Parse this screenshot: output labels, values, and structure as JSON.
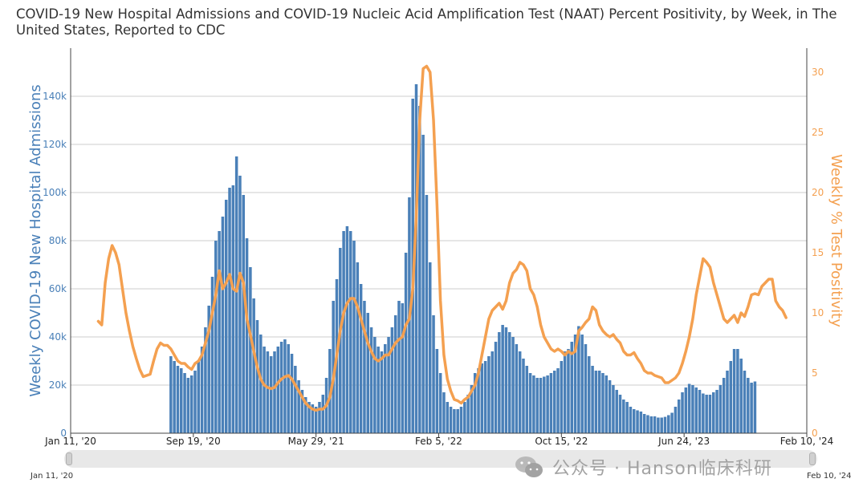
{
  "title": "COVID-19 New Hospital Admissions and COVID-19 Nucleic Acid Amplification Test (NAAT) Percent Positivity, by Week, in The United States, Reported to CDC",
  "watermark": {
    "icon": "wechat-icon",
    "text": "公众号 · Hanson临床科研"
  },
  "slider": {
    "start_label": "Jan 11, '20",
    "end_label": "Feb 10, '24"
  },
  "colors": {
    "bars": "#4a80b8",
    "line": "#f4a050",
    "left_axis": "#4a80b8",
    "right_axis": "#f4a050",
    "grid": "#cccccc"
  },
  "chart_data": {
    "type": "bar",
    "x_axis": {
      "start": "2020-01-11",
      "end": "2024-02-10",
      "tick_labels": [
        "Jan 11, '20",
        "Sep 19, '20",
        "May 29, '21",
        "Feb 5, '22",
        "Oct 15, '22",
        "Jun 24, '23",
        "Feb 10, '24"
      ]
    },
    "y_left": {
      "label": "Weekly COVID-19 New Hospital Admissions",
      "range": [
        0,
        160000
      ],
      "tick_labels": [
        "0",
        "20k",
        "40k",
        "60k",
        "80k",
        "100k",
        "120k",
        "140k"
      ]
    },
    "y_right": {
      "label": "Weekly % Test Positivity",
      "range": [
        0,
        32
      ],
      "tick_labels": [
        "0",
        "5",
        "10",
        "15",
        "20",
        "25",
        "30"
      ]
    },
    "grid": true,
    "series": [
      {
        "kind": "bar",
        "axis": "left",
        "start_week": "2020-08-01",
        "values": [
          32000,
          30000,
          28000,
          27000,
          25000,
          23000,
          24000,
          26000,
          30000,
          36000,
          44000,
          53000,
          65000,
          80000,
          84000,
          90000,
          97000,
          102000,
          103000,
          115000,
          107000,
          99000,
          81000,
          69000,
          56000,
          47000,
          41000,
          36000,
          34000,
          32000,
          34000,
          36000,
          38000,
          39000,
          37000,
          33000,
          28000,
          22000,
          18000,
          15000,
          13000,
          12000,
          11000,
          13000,
          16000,
          23000,
          35000,
          55000,
          64000,
          77000,
          84000,
          86000,
          84000,
          80000,
          71000,
          62000,
          55000,
          50000,
          44000,
          40000,
          36000,
          34000,
          37000,
          40000,
          44000,
          49000,
          55000,
          54000,
          75000,
          98000,
          139000,
          145000,
          136000,
          124000,
          99000,
          71000,
          49000,
          35000,
          25000,
          17000,
          13000,
          11000,
          10000,
          10000,
          11000,
          13000,
          16000,
          20000,
          25000,
          27000,
          29000,
          30000,
          32000,
          34000,
          38000,
          42000,
          45000,
          44000,
          42000,
          40000,
          37000,
          34000,
          31000,
          28000,
          25000,
          24000,
          23000,
          23000,
          23500,
          24000,
          25000,
          26000,
          27000,
          30000,
          34000,
          35000,
          38000,
          41000,
          44500,
          41000,
          37000,
          32000,
          28000,
          26000,
          26000,
          25000,
          24000,
          22000,
          20000,
          18000,
          16000,
          14000,
          13000,
          11000,
          10000,
          9500,
          9000,
          8000,
          7500,
          7000,
          7000,
          6500,
          6500,
          6800,
          7500,
          8500,
          11000,
          14000,
          17000,
          19000,
          20500,
          20000,
          19000,
          18000,
          16500,
          16000,
          16000,
          17000,
          18000,
          20000,
          23000,
          26000,
          30000,
          35000,
          35000,
          31000,
          26000,
          23000,
          21000,
          21500
        ]
      },
      {
        "kind": "line",
        "axis": "right",
        "points": [
          [
            "2020-03-07",
            9.3
          ],
          [
            "2020-03-14",
            9.0
          ],
          [
            "2020-03-21",
            12.5
          ],
          [
            "2020-03-28",
            14.5
          ],
          [
            "2020-04-04",
            15.6
          ],
          [
            "2020-04-11",
            15.0
          ],
          [
            "2020-04-18",
            14.0
          ],
          [
            "2020-04-25",
            12.0
          ],
          [
            "2020-05-02",
            10.0
          ],
          [
            "2020-05-09",
            8.5
          ],
          [
            "2020-05-16",
            7.2
          ],
          [
            "2020-05-23",
            6.2
          ],
          [
            "2020-05-30",
            5.3
          ],
          [
            "2020-06-06",
            4.7
          ],
          [
            "2020-06-13",
            4.8
          ],
          [
            "2020-06-20",
            4.9
          ],
          [
            "2020-06-27",
            6.0
          ],
          [
            "2020-07-04",
            7.0
          ],
          [
            "2020-07-11",
            7.5
          ],
          [
            "2020-07-18",
            7.3
          ],
          [
            "2020-07-25",
            7.3
          ],
          [
            "2020-08-01",
            7.0
          ],
          [
            "2020-08-08",
            6.5
          ],
          [
            "2020-08-15",
            6.0
          ],
          [
            "2020-08-22",
            5.8
          ],
          [
            "2020-08-29",
            5.8
          ],
          [
            "2020-09-05",
            5.5
          ],
          [
            "2020-09-12",
            5.3
          ],
          [
            "2020-09-19",
            5.8
          ],
          [
            "2020-09-26",
            6.0
          ],
          [
            "2020-10-03",
            6.5
          ],
          [
            "2020-10-10",
            7.5
          ],
          [
            "2020-10-17",
            8.5
          ],
          [
            "2020-10-24",
            10.0
          ],
          [
            "2020-10-31",
            11.5
          ],
          [
            "2020-11-07",
            13.5
          ],
          [
            "2020-11-14",
            12.0
          ],
          [
            "2020-11-21",
            12.5
          ],
          [
            "2020-11-28",
            13.2
          ],
          [
            "2020-12-05",
            12.0
          ],
          [
            "2020-12-12",
            11.8
          ],
          [
            "2020-12-19",
            13.3
          ],
          [
            "2020-12-26",
            12.5
          ],
          [
            "2021-01-02",
            9.5
          ],
          [
            "2021-01-09",
            8.2
          ],
          [
            "2021-01-16",
            6.8
          ],
          [
            "2021-01-23",
            5.5
          ],
          [
            "2021-01-30",
            4.5
          ],
          [
            "2021-02-06",
            4.0
          ],
          [
            "2021-02-13",
            3.8
          ],
          [
            "2021-02-20",
            3.7
          ],
          [
            "2021-02-27",
            3.8
          ],
          [
            "2021-03-06",
            4.2
          ],
          [
            "2021-03-13",
            4.5
          ],
          [
            "2021-03-20",
            4.7
          ],
          [
            "2021-03-27",
            4.8
          ],
          [
            "2021-04-03",
            4.5
          ],
          [
            "2021-04-10",
            4.0
          ],
          [
            "2021-04-17",
            3.5
          ],
          [
            "2021-04-24",
            3.0
          ],
          [
            "2021-05-01",
            2.5
          ],
          [
            "2021-05-08",
            2.2
          ],
          [
            "2021-05-15",
            2.0
          ],
          [
            "2021-05-22",
            1.9
          ],
          [
            "2021-05-29",
            2.0
          ],
          [
            "2021-06-05",
            2.0
          ],
          [
            "2021-06-12",
            2.3
          ],
          [
            "2021-06-19",
            3.0
          ],
          [
            "2021-06-26",
            4.5
          ],
          [
            "2021-07-03",
            6.5
          ],
          [
            "2021-07-10",
            8.5
          ],
          [
            "2021-07-17",
            10.0
          ],
          [
            "2021-07-24",
            10.8
          ],
          [
            "2021-07-31",
            11.2
          ],
          [
            "2021-08-07",
            11.2
          ],
          [
            "2021-08-14",
            10.5
          ],
          [
            "2021-08-21",
            9.5
          ],
          [
            "2021-08-28",
            8.5
          ],
          [
            "2021-09-04",
            7.5
          ],
          [
            "2021-09-11",
            6.8
          ],
          [
            "2021-09-18",
            6.2
          ],
          [
            "2021-09-25",
            6.0
          ],
          [
            "2021-10-02",
            6.2
          ],
          [
            "2021-10-09",
            6.5
          ],
          [
            "2021-10-16",
            6.5
          ],
          [
            "2021-10-23",
            7.0
          ],
          [
            "2021-10-30",
            7.5
          ],
          [
            "2021-11-06",
            7.8
          ],
          [
            "2021-11-13",
            8.0
          ],
          [
            "2021-11-20",
            9.0
          ],
          [
            "2021-11-27",
            9.5
          ],
          [
            "2021-12-04",
            12.0
          ],
          [
            "2021-12-11",
            18.0
          ],
          [
            "2021-12-18",
            26.0
          ],
          [
            "2021-12-25",
            30.3
          ],
          [
            "2022-01-01",
            30.5
          ],
          [
            "2022-01-08",
            30.0
          ],
          [
            "2022-01-15",
            26.0
          ],
          [
            "2022-01-22",
            19.0
          ],
          [
            "2022-01-29",
            11.0
          ],
          [
            "2022-02-05",
            6.5
          ],
          [
            "2022-02-12",
            4.5
          ],
          [
            "2022-02-19",
            3.5
          ],
          [
            "2022-02-26",
            2.8
          ],
          [
            "2022-03-05",
            2.7
          ],
          [
            "2022-03-12",
            2.5
          ],
          [
            "2022-03-19",
            2.8
          ],
          [
            "2022-03-26",
            3.0
          ],
          [
            "2022-04-02",
            3.5
          ],
          [
            "2022-04-09",
            4.0
          ],
          [
            "2022-04-16",
            5.0
          ],
          [
            "2022-04-23",
            6.5
          ],
          [
            "2022-04-30",
            8.0
          ],
          [
            "2022-05-07",
            9.5
          ],
          [
            "2022-05-14",
            10.2
          ],
          [
            "2022-05-21",
            10.5
          ],
          [
            "2022-05-28",
            10.8
          ],
          [
            "2022-06-04",
            10.3
          ],
          [
            "2022-06-11",
            11.0
          ],
          [
            "2022-06-18",
            12.5
          ],
          [
            "2022-06-25",
            13.3
          ],
          [
            "2022-07-02",
            13.6
          ],
          [
            "2022-07-09",
            14.2
          ],
          [
            "2022-07-16",
            14.0
          ],
          [
            "2022-07-23",
            13.5
          ],
          [
            "2022-07-30",
            12.0
          ],
          [
            "2022-08-06",
            11.5
          ],
          [
            "2022-08-13",
            10.5
          ],
          [
            "2022-08-20",
            9.0
          ],
          [
            "2022-08-27",
            8.0
          ],
          [
            "2022-09-03",
            7.5
          ],
          [
            "2022-09-10",
            7.0
          ],
          [
            "2022-09-17",
            6.8
          ],
          [
            "2022-09-24",
            7.0
          ],
          [
            "2022-10-01",
            6.8
          ],
          [
            "2022-10-08",
            6.5
          ],
          [
            "2022-10-15",
            6.8
          ],
          [
            "2022-10-22",
            6.6
          ],
          [
            "2022-10-29",
            6.8
          ],
          [
            "2022-11-05",
            8.5
          ],
          [
            "2022-11-12",
            8.8
          ],
          [
            "2022-11-19",
            9.2
          ],
          [
            "2022-11-26",
            9.5
          ],
          [
            "2022-12-03",
            10.5
          ],
          [
            "2022-12-10",
            10.2
          ],
          [
            "2022-12-17",
            9.0
          ],
          [
            "2022-12-24",
            8.5
          ],
          [
            "2022-12-31",
            8.2
          ],
          [
            "2023-01-07",
            8.0
          ],
          [
            "2023-01-14",
            8.2
          ],
          [
            "2023-01-21",
            7.8
          ],
          [
            "2023-01-28",
            7.5
          ],
          [
            "2023-02-04",
            6.8
          ],
          [
            "2023-02-11",
            6.5
          ],
          [
            "2023-02-18",
            6.5
          ],
          [
            "2023-02-25",
            6.7
          ],
          [
            "2023-03-04",
            6.2
          ],
          [
            "2023-03-11",
            5.8
          ],
          [
            "2023-03-18",
            5.2
          ],
          [
            "2023-03-25",
            5.0
          ],
          [
            "2023-04-01",
            5.0
          ],
          [
            "2023-04-08",
            4.8
          ],
          [
            "2023-04-15",
            4.7
          ],
          [
            "2023-04-22",
            4.6
          ],
          [
            "2023-04-29",
            4.2
          ],
          [
            "2023-05-06",
            4.2
          ],
          [
            "2023-05-13",
            4.4
          ],
          [
            "2023-05-20",
            4.6
          ],
          [
            "2023-05-27",
            5.0
          ],
          [
            "2023-06-03",
            5.8
          ],
          [
            "2023-06-10",
            6.8
          ],
          [
            "2023-06-17",
            8.0
          ],
          [
            "2023-06-24",
            9.5
          ],
          [
            "2023-07-01",
            11.5
          ],
          [
            "2023-07-08",
            13.0
          ],
          [
            "2023-07-15",
            14.5
          ],
          [
            "2023-07-22",
            14.2
          ],
          [
            "2023-07-29",
            13.8
          ],
          [
            "2023-08-05",
            12.5
          ],
          [
            "2023-08-12",
            11.5
          ],
          [
            "2023-08-19",
            10.5
          ],
          [
            "2023-08-26",
            9.5
          ],
          [
            "2023-09-02",
            9.2
          ],
          [
            "2023-09-09",
            9.5
          ],
          [
            "2023-09-16",
            9.8
          ],
          [
            "2023-09-23",
            9.2
          ],
          [
            "2023-09-30",
            10.0
          ],
          [
            "2023-10-07",
            9.7
          ],
          [
            "2023-10-14",
            10.5
          ],
          [
            "2023-10-21",
            11.5
          ],
          [
            "2023-10-28",
            11.6
          ],
          [
            "2023-11-04",
            11.5
          ],
          [
            "2023-11-11",
            12.2
          ],
          [
            "2023-11-18",
            12.5
          ],
          [
            "2023-11-25",
            12.8
          ],
          [
            "2023-12-02",
            12.8
          ],
          [
            "2023-12-09",
            11.0
          ],
          [
            "2023-12-16",
            10.5
          ],
          [
            "2023-12-23",
            10.2
          ],
          [
            "2023-12-30",
            9.6
          ]
        ]
      }
    ]
  }
}
